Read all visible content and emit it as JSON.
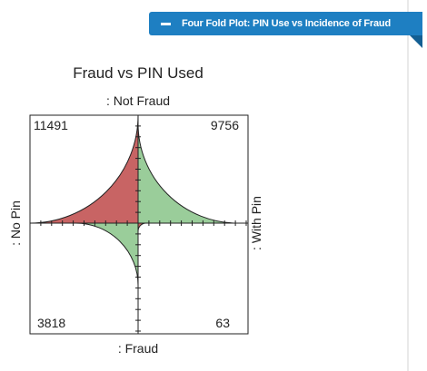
{
  "panel": {
    "title": "Four Fold Plot: PIN Use vs Incidence of Fraud",
    "collapse_icon": "minus-icon",
    "accent_color": "#1e7fc2"
  },
  "chart_data": {
    "type": "fourfold",
    "title": "Fraud vs PIN Used",
    "row_labels": [
      ": Not Fraud",
      ": Fraud"
    ],
    "col_labels": [
      ": No Pin",
      ": With Pin"
    ],
    "cells": [
      {
        "row": ": Not Fraud",
        "col": ": No Pin",
        "count": 11491,
        "label": "11491",
        "color": "#c86464"
      },
      {
        "row": ": Not Fraud",
        "col": ": With Pin",
        "count": 9756,
        "label": "9756",
        "color": "#9acd9a"
      },
      {
        "row": ": Fraud",
        "col": ": No Pin",
        "count": 3818,
        "label": "3818",
        "color": "#9acd9a"
      },
      {
        "row": ": Fraud",
        "col": ": With Pin",
        "count": 63,
        "label": "63",
        "color": "#c86464"
      }
    ]
  }
}
